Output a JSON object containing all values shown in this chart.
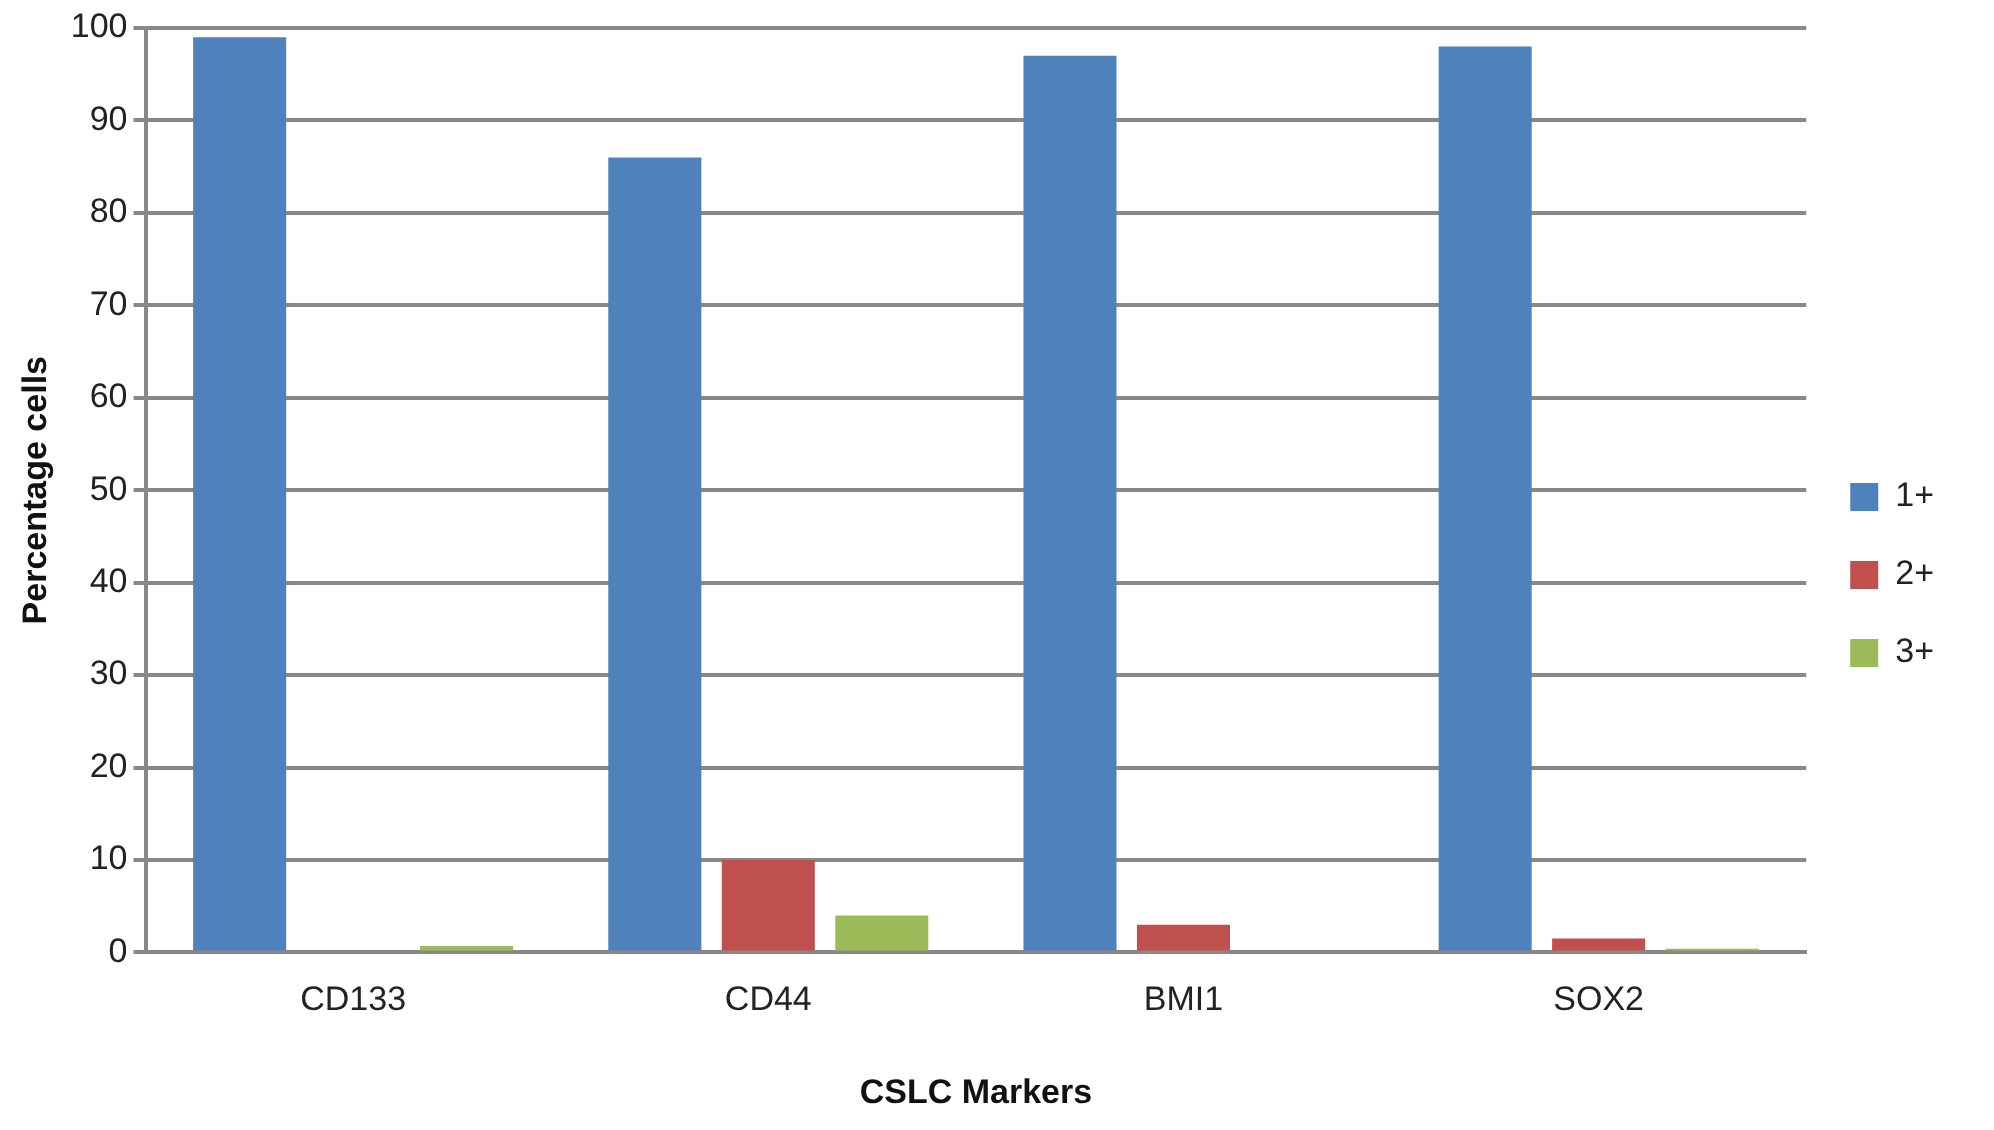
{
  "chart_data": {
    "type": "bar",
    "xlabel": "CSLC Markers",
    "ylabel": "Percentage cells",
    "categories": [
      "CD133",
      "CD44",
      "BMI1",
      "SOX2"
    ],
    "series": [
      {
        "name": "1+",
        "color": "#4f81bd",
        "values": [
          99,
          86,
          97,
          98
        ]
      },
      {
        "name": "2+",
        "color": "#c0504d",
        "values": [
          0,
          10,
          3,
          1.5
        ]
      },
      {
        "name": "3+",
        "color": "#9bbb59",
        "values": [
          0.7,
          4,
          0,
          0.4
        ]
      }
    ],
    "ylim": [
      0,
      100
    ],
    "yticks": [
      0,
      10,
      20,
      30,
      40,
      50,
      60,
      70,
      80,
      90,
      100
    ],
    "grid": "y",
    "legend": "right"
  }
}
